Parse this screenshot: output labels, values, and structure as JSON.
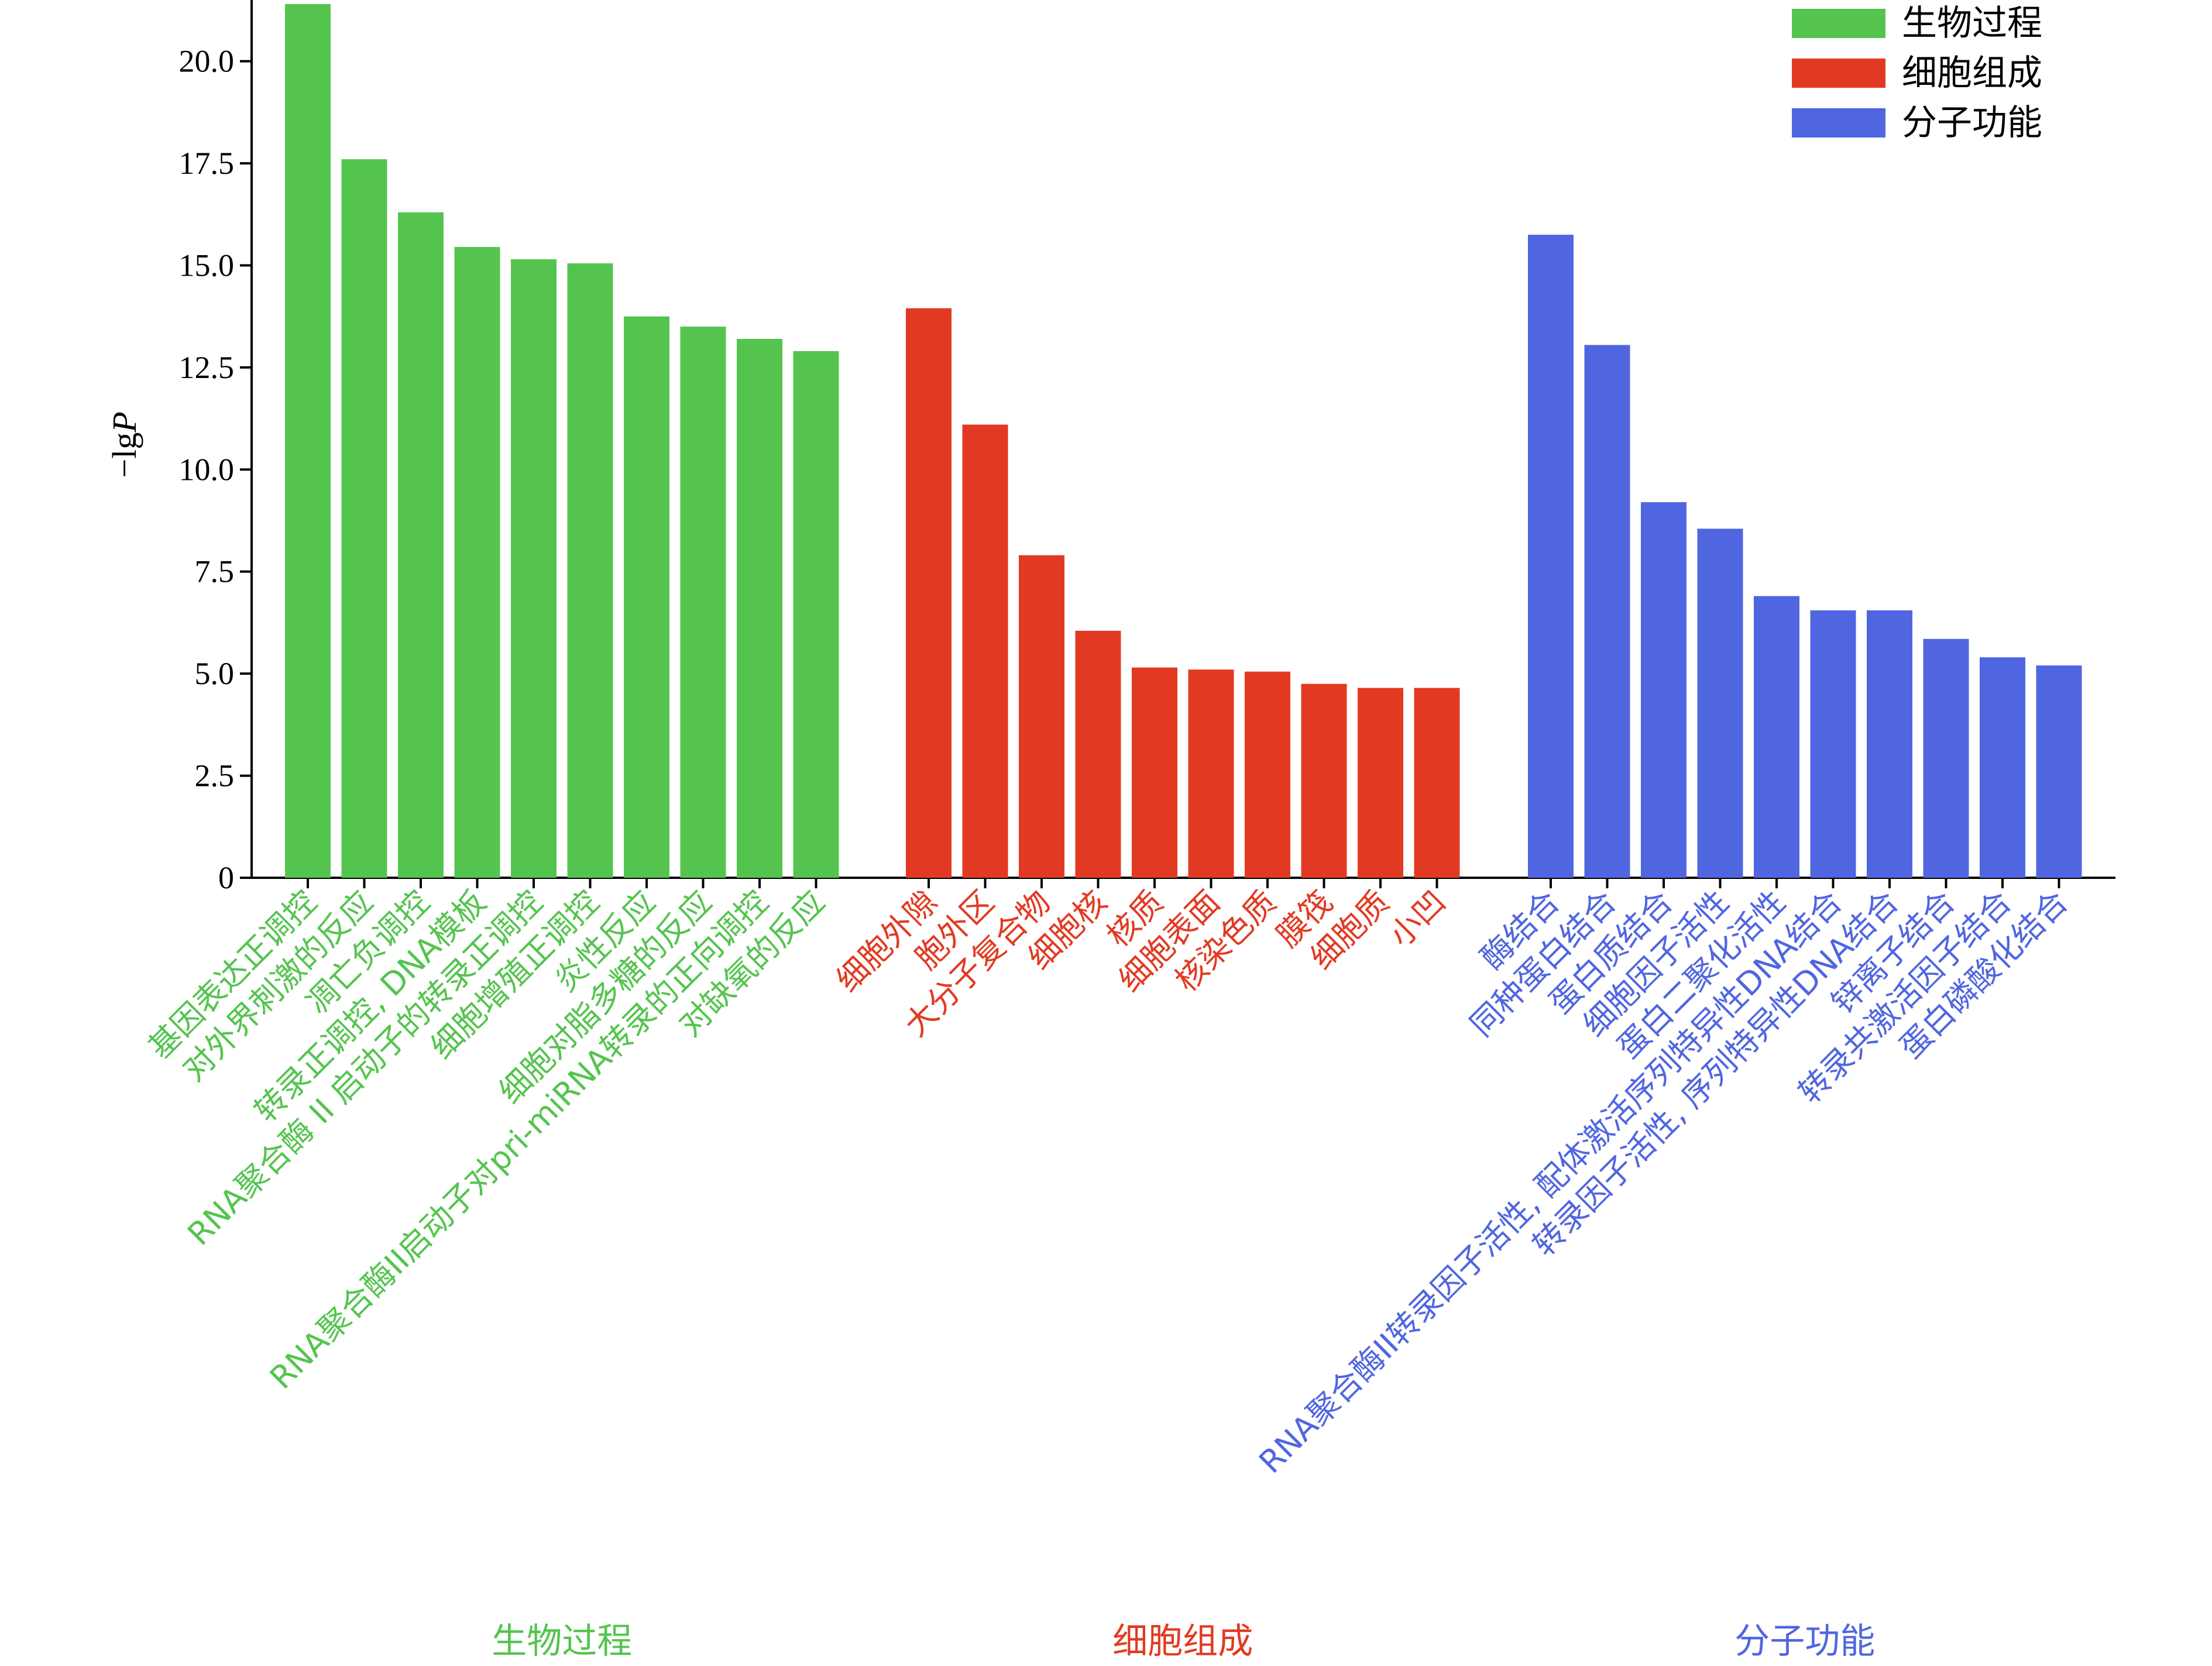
{
  "chart_data": {
    "type": "bar",
    "ylabel": "−lgP",
    "ylim": [
      0,
      21.5
    ],
    "yticks": [
      "0",
      "2.5",
      "5.0",
      "7.5",
      "10.0",
      "12.5",
      "15.0",
      "17.5",
      "20.0"
    ],
    "ytick_values": [
      0,
      2.5,
      5,
      7.5,
      10,
      12.5,
      15,
      17.5,
      20
    ],
    "legend_position": "top-right",
    "series": [
      {
        "name": "生物过程",
        "color": "#55c44f",
        "group_label": "生物过程",
        "categories": [
          "基因表达正调控",
          "对外界刺激的反应",
          "凋亡负调控",
          "转录正调控, DNA模板",
          "RNA聚合酶 II 启动子的转录正调控",
          "细胞增殖正调控",
          "炎性反应",
          "细胞对脂多糖的反应",
          "RNA聚合酶II启动子对pri-miRNA转录的正向调控",
          "对缺氧的反应"
        ],
        "values": [
          21.4,
          17.6,
          16.3,
          15.45,
          15.15,
          15.05,
          13.75,
          13.5,
          13.2,
          12.9
        ]
      },
      {
        "name": "细胞组成",
        "color": "#e23a22",
        "group_label": "细胞组成",
        "categories": [
          "细胞外隙",
          "胞外区",
          "大分子复合物",
          "细胞核",
          "核质",
          "细胞表面",
          "核染色质",
          "膜筏",
          "细胞质",
          "小凹"
        ],
        "values": [
          13.95,
          11.1,
          7.9,
          6.05,
          5.15,
          5.1,
          5.05,
          4.75,
          4.65,
          4.65
        ]
      },
      {
        "name": "分子功能",
        "color": "#5066e0",
        "group_label": "分子功能",
        "categories": [
          "酶结合",
          "同种蛋白结合",
          "蛋白质结合",
          "细胞因子活性",
          "蛋白二聚化活性",
          "RNA聚合酶II转录因子活性, 配体激活序列特异性DNA结合",
          "转录因子活性, 序列特异性DNA结合",
          "锌离子结合",
          "转录共激活因子结合",
          "蛋白磷酸化结合"
        ],
        "values": [
          15.75,
          13.05,
          9.2,
          8.55,
          6.9,
          6.55,
          6.55,
          5.85,
          5.4,
          5.2
        ]
      }
    ]
  }
}
